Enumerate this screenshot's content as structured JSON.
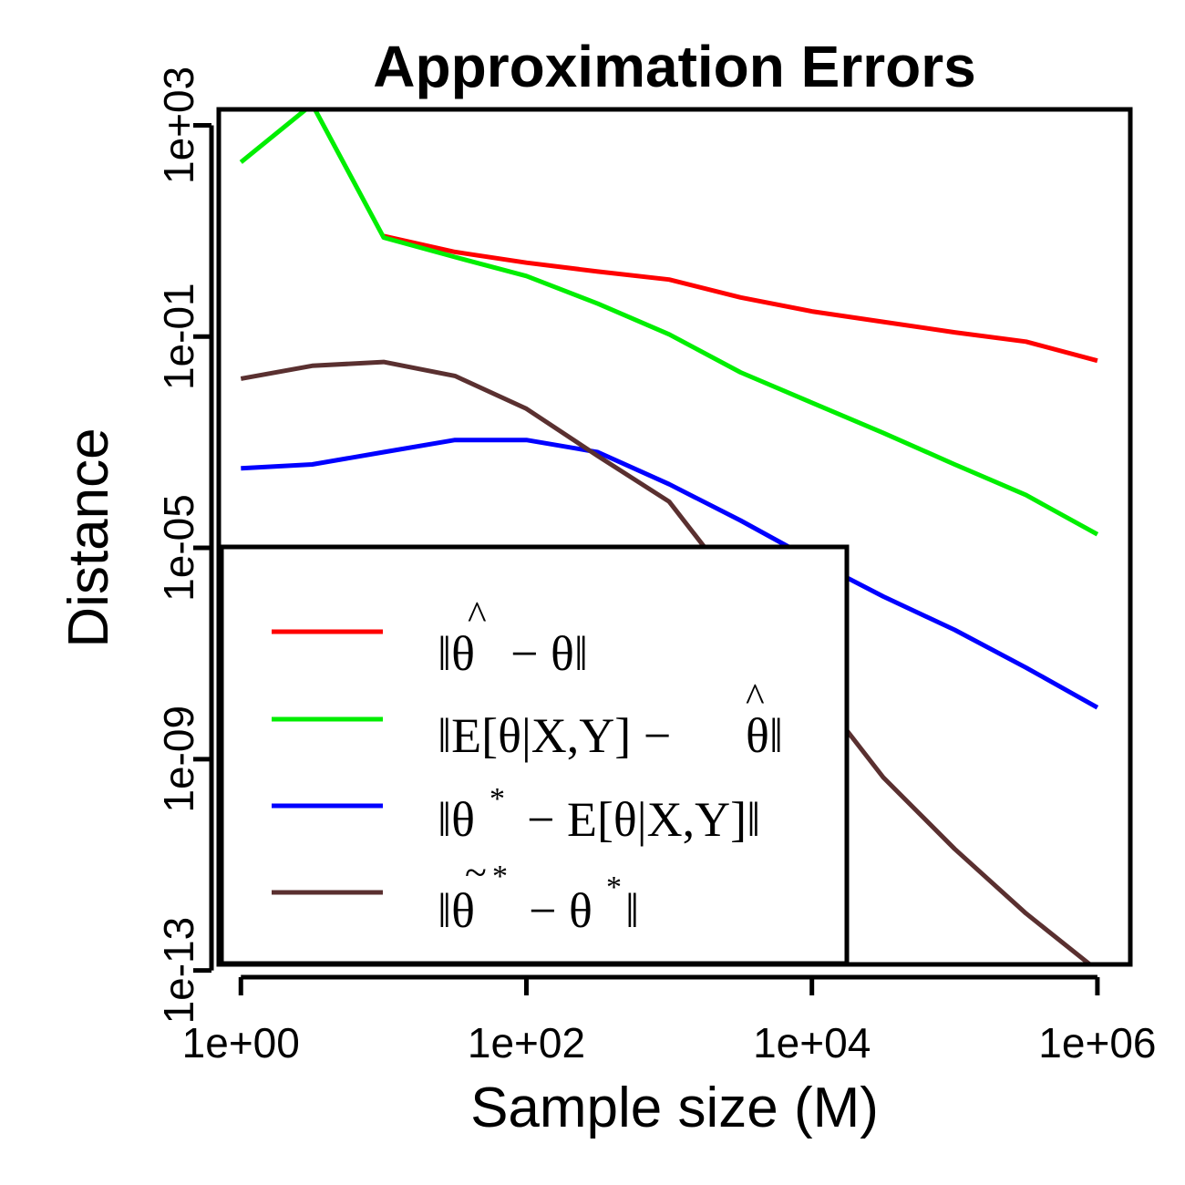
{
  "chart_data": {
    "type": "line",
    "title": "Approximation Errors",
    "xlabel": "Sample size (M)",
    "ylabel": "Distance",
    "x_scale": "log",
    "y_scale": "log",
    "xlim": [
      0.7,
      1700000
    ],
    "ylim": [
      1.3e-13,
      2000
    ],
    "x_ticks": [
      1,
      100,
      10000,
      1000000
    ],
    "x_tick_labels": [
      "1e+00",
      "1e+02",
      "1e+04",
      "1e+06"
    ],
    "y_ticks": [
      1e-13,
      1e-09,
      1e-05,
      0.1,
      1000
    ],
    "y_tick_labels": [
      "1e-13",
      "1e-09",
      "1e-05",
      "1e-01",
      "1e+03"
    ],
    "grid": false,
    "legend_position": "bottom-left",
    "x": [
      1,
      3.16,
      10,
      31.6,
      100,
      316,
      1000,
      3162,
      10000,
      31623,
      100000,
      316228,
      1000000
    ],
    "series": [
      {
        "name": "‖θ̂ − θ‖",
        "color": "#ff0000",
        "values": [
          null,
          null,
          8.0,
          4.0,
          2.5,
          1.7,
          1.2,
          0.55,
          0.3,
          0.19,
          0.12,
          0.08,
          0.035
        ]
      },
      {
        "name": "‖E[θ|X,Y] − θ̂‖",
        "color": "#00ee00",
        "values": [
          200,
          2500,
          7.5,
          3.2,
          1.4,
          0.42,
          0.11,
          0.021,
          0.0056,
          0.0015,
          0.00038,
          0.0001,
          1.8e-05
        ]
      },
      {
        "name": "‖θ* − E[θ|X,Y]‖",
        "color": "#0000ff",
        "values": [
          0.00032,
          0.00038,
          0.00065,
          0.0011,
          0.0011,
          0.00065,
          0.00016,
          3.3e-05,
          6e-06,
          1.2e-06,
          2.8e-07,
          5.4e-08,
          9.5e-09
        ]
      },
      {
        "name": "‖θ̃* − θ*‖",
        "color": "#5a3030",
        "values": [
          0.016,
          0.028,
          0.033,
          0.018,
          0.0043,
          0.00055,
          7.5e-05,
          null,
          null,
          4.5e-10,
          2e-11,
          1.2e-12,
          1e-13
        ]
      }
    ]
  }
}
